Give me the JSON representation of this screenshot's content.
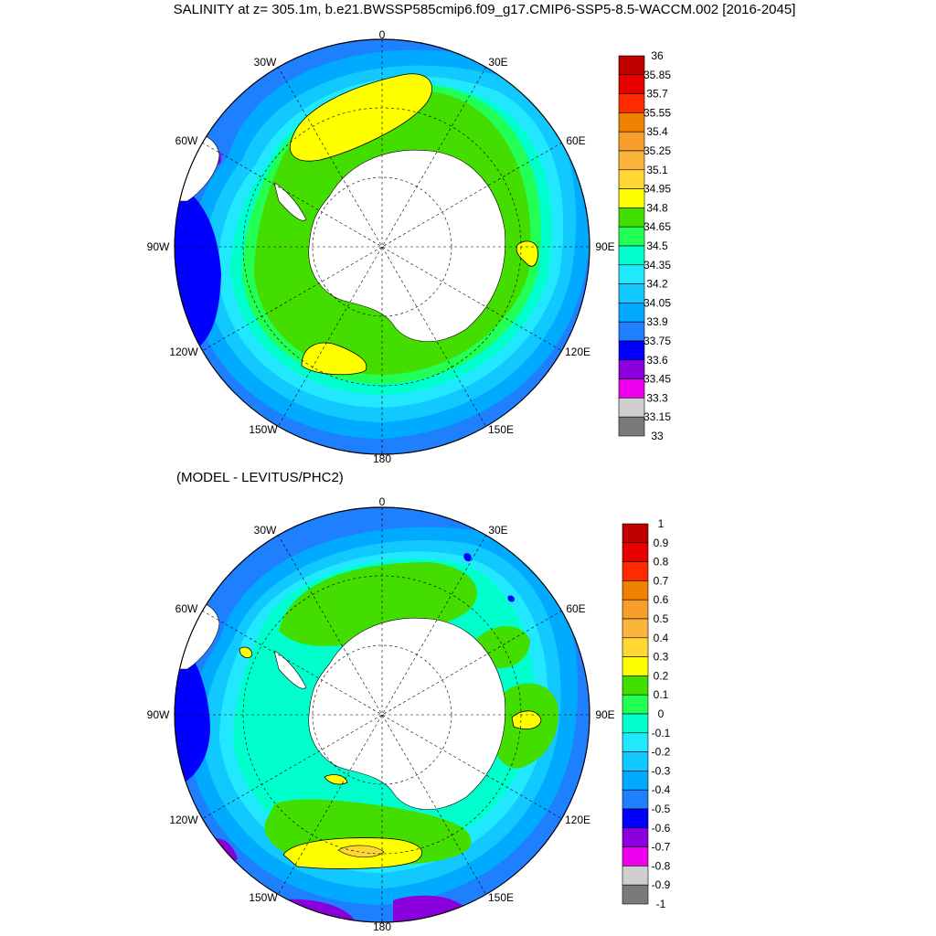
{
  "title": "SALINITY at z= 305.1m, b.e21.BWSSP585cmip6.f09_g17.CMIP6-SSP5-8.5-WACCM.002 [2016-2045]",
  "subtitle": "(MODEL - LEVITUS/PHC2)",
  "lon_labels": [
    "0",
    "30E",
    "60E",
    "90E",
    "120E",
    "150E",
    "180",
    "150W",
    "120W",
    "90W",
    "60W",
    "30W"
  ],
  "colorbar_top": {
    "labels": [
      "36",
      "35.85",
      "35.7",
      "35.55",
      "35.4",
      "35.25",
      "35.1",
      "34.95",
      "34.8",
      "34.65",
      "34.5",
      "34.35",
      "34.2",
      "34.05",
      "33.9",
      "33.75",
      "33.6",
      "33.45",
      "33.3",
      "33.15",
      "33"
    ]
  },
  "colorbar_bottom": {
    "labels": [
      "1",
      "0.9",
      "0.8",
      "0.7",
      "0.6",
      "0.5",
      "0.4",
      "0.3",
      "0.2",
      "0.1",
      "0",
      "-0.1",
      "-0.2",
      "-0.3",
      "-0.4",
      "-0.5",
      "-0.6",
      "-0.7",
      "-0.8",
      "-0.9",
      "-1"
    ]
  },
  "colors": {
    "palette_top_to_bottom": [
      "#c00000",
      "#e60000",
      "#ff2a00",
      "#f08000",
      "#f79d2a",
      "#fbb43c",
      "#ffd633",
      "#ffff00",
      "#44dd00",
      "#22ff55",
      "#00ffcc",
      "#22e8ff",
      "#11c8ff",
      "#00aaff",
      "#1e7fff",
      "#0000ff",
      "#8a00dd",
      "#ee00ee",
      "#cfcfcf",
      "#7a7a7a"
    ],
    "land": "#ffffff"
  }
}
